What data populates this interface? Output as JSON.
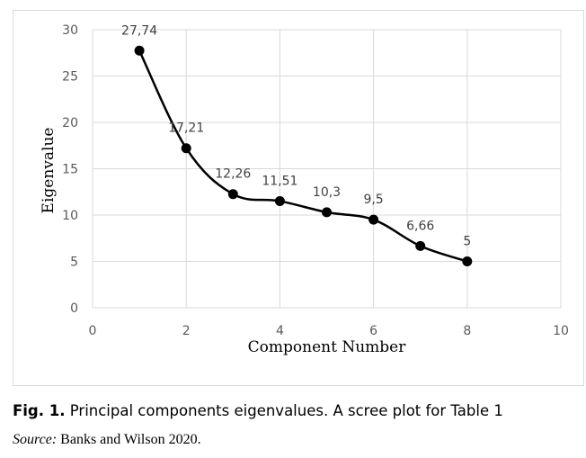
{
  "chart_data": {
    "type": "scatter",
    "xlabel": "Component Number",
    "ylabel": "Eigenvalue",
    "xlim": [
      0,
      10
    ],
    "ylim": [
      0,
      30
    ],
    "x_ticks": [
      "0",
      "2",
      "4",
      "6",
      "8",
      "10"
    ],
    "y_ticks": [
      "0",
      "5",
      "10",
      "15",
      "20",
      "25",
      "30"
    ],
    "grid": true,
    "smooth_line": true,
    "series_color": "#000000",
    "grid_color": "#d9d9d9",
    "points": [
      {
        "x": 1,
        "y": 27.74,
        "label": "27,74"
      },
      {
        "x": 2,
        "y": 17.21,
        "label": "17,21"
      },
      {
        "x": 3,
        "y": 12.26,
        "label": "12,26"
      },
      {
        "x": 4,
        "y": 11.51,
        "label": "11,51"
      },
      {
        "x": 5,
        "y": 10.3,
        "label": "10,3"
      },
      {
        "x": 6,
        "y": 9.5,
        "label": "9,5"
      },
      {
        "x": 7,
        "y": 6.66,
        "label": "6,66"
      },
      {
        "x": 8,
        "y": 5,
        "label": "5"
      }
    ]
  },
  "caption": {
    "fig_label": "Fig. 1.",
    "text": "Principal components eigenvalues. A scree plot for Table 1"
  },
  "source": {
    "label": "Source:",
    "text": "Banks and Wilson 2020."
  }
}
